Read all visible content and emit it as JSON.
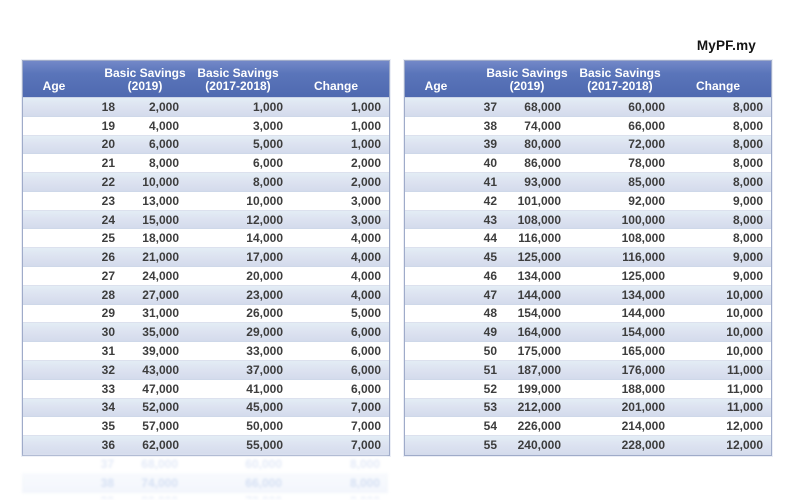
{
  "brand": {
    "logo_text": "MyPF.my"
  },
  "header_display": [
    {
      "line1": "Age",
      "line2": ""
    },
    {
      "line1": "Basic Savings",
      "line2": "(2019)"
    },
    {
      "line1": "Basic Savings",
      "line2": "(2017-2018)"
    },
    {
      "line1": "Change",
      "line2": ""
    }
  ],
  "colors": {
    "header_blue": "#5069b0",
    "band_row": "#dae1ef",
    "text_dark": "#3d3d3d",
    "border": "#9fabc9"
  },
  "chart_data": [
    {
      "type": "table",
      "columns": [
        "Age",
        "Basic Savings (2019)",
        "Basic Savings (2017-2018)",
        "Change"
      ],
      "rows": [
        [
          "18",
          "2,000",
          "1,000",
          "1,000"
        ],
        [
          "19",
          "4,000",
          "3,000",
          "1,000"
        ],
        [
          "20",
          "6,000",
          "5,000",
          "1,000"
        ],
        [
          "21",
          "8,000",
          "6,000",
          "2,000"
        ],
        [
          "22",
          "10,000",
          "8,000",
          "2,000"
        ],
        [
          "23",
          "13,000",
          "10,000",
          "3,000"
        ],
        [
          "24",
          "15,000",
          "12,000",
          "3,000"
        ],
        [
          "25",
          "18,000",
          "14,000",
          "4,000"
        ],
        [
          "26",
          "21,000",
          "17,000",
          "4,000"
        ],
        [
          "27",
          "24,000",
          "20,000",
          "4,000"
        ],
        [
          "28",
          "27,000",
          "23,000",
          "4,000"
        ],
        [
          "29",
          "31,000",
          "26,000",
          "5,000"
        ],
        [
          "30",
          "35,000",
          "29,000",
          "6,000"
        ],
        [
          "31",
          "39,000",
          "33,000",
          "6,000"
        ],
        [
          "32",
          "43,000",
          "37,000",
          "6,000"
        ],
        [
          "33",
          "47,000",
          "41,000",
          "6,000"
        ],
        [
          "34",
          "52,000",
          "45,000",
          "7,000"
        ],
        [
          "35",
          "57,000",
          "50,000",
          "7,000"
        ],
        [
          "36",
          "62,000",
          "55,000",
          "7,000"
        ]
      ]
    },
    {
      "type": "table",
      "columns": [
        "Age",
        "Basic Savings (2019)",
        "Basic Savings (2017-2018)",
        "Change"
      ],
      "rows": [
        [
          "37",
          "68,000",
          "60,000",
          "8,000"
        ],
        [
          "38",
          "74,000",
          "66,000",
          "8,000"
        ],
        [
          "39",
          "80,000",
          "72,000",
          "8,000"
        ],
        [
          "40",
          "86,000",
          "78,000",
          "8,000"
        ],
        [
          "41",
          "93,000",
          "85,000",
          "8,000"
        ],
        [
          "42",
          "101,000",
          "92,000",
          "9,000"
        ],
        [
          "43",
          "108,000",
          "100,000",
          "8,000"
        ],
        [
          "44",
          "116,000",
          "108,000",
          "8,000"
        ],
        [
          "45",
          "125,000",
          "116,000",
          "9,000"
        ],
        [
          "46",
          "134,000",
          "125,000",
          "9,000"
        ],
        [
          "47",
          "144,000",
          "134,000",
          "10,000"
        ],
        [
          "48",
          "154,000",
          "144,000",
          "10,000"
        ],
        [
          "49",
          "164,000",
          "154,000",
          "10,000"
        ],
        [
          "50",
          "175,000",
          "165,000",
          "10,000"
        ],
        [
          "51",
          "187,000",
          "176,000",
          "11,000"
        ],
        [
          "52",
          "199,000",
          "188,000",
          "11,000"
        ],
        [
          "53",
          "212,000",
          "201,000",
          "11,000"
        ],
        [
          "54",
          "226,000",
          "214,000",
          "12,000"
        ],
        [
          "55",
          "240,000",
          "228,000",
          "12,000"
        ]
      ]
    }
  ]
}
